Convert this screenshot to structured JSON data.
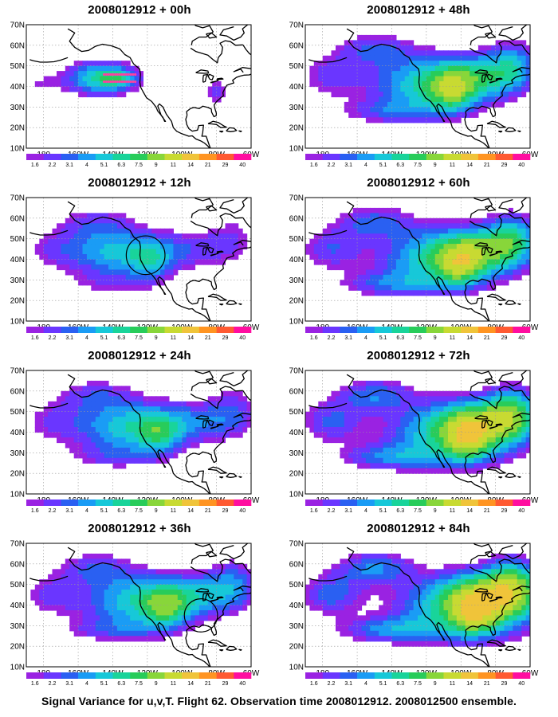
{
  "footer": {
    "caption": "Signal Variance for u,v,T. Flight 62. Observation time 2008012912. 2008012500 ensemble."
  },
  "axes": {
    "x_ticks": [
      "180",
      "160W",
      "140W",
      "120W",
      "100W",
      "80W",
      "60W"
    ],
    "y_ticks": [
      "70N",
      "60N",
      "50N",
      "40N",
      "30N",
      "20N",
      "10N"
    ]
  },
  "colorbar": {
    "labels": [
      "1.6",
      "2.2",
      "3.1",
      "4",
      "5.1",
      "6.3",
      "7.5",
      "9",
      "11",
      "14",
      "21",
      "29",
      "40"
    ],
    "colors": [
      "#ffffff",
      "#9a22e2",
      "#6a36ff",
      "#2a60f2",
      "#1a9cf5",
      "#17c8d8",
      "#19d49a",
      "#28cc5a",
      "#88d63a",
      "#c8da32",
      "#f0c43a",
      "#ff9422",
      "#ff5a32",
      "#ff0ea0"
    ]
  },
  "panels": [
    {
      "title": "2008012912 + 00h",
      "lead_hours": 0
    },
    {
      "title": "2008012912 + 48h",
      "lead_hours": 48
    },
    {
      "title": "2008012912 + 12h",
      "lead_hours": 12
    },
    {
      "title": "2008012912 + 60h",
      "lead_hours": 60
    },
    {
      "title": "2008012912 + 24h",
      "lead_hours": 24
    },
    {
      "title": "2008012912 + 72h",
      "lead_hours": 72
    },
    {
      "title": "2008012912 + 36h",
      "lead_hours": 36
    },
    {
      "title": "2008012912 + 84h",
      "lead_hours": 84
    }
  ],
  "observation_track": {
    "lon_from": -145,
    "lon_to": -127,
    "lat_from": 42,
    "lat_to": 46,
    "color": "#ff3fa0"
  },
  "target_circles": [
    {
      "panel": 2,
      "lon": -121,
      "lat": 42,
      "radius_deg": 7
    },
    {
      "panel": 6,
      "lon": -89,
      "lat": 35,
      "radius_deg": 6
    }
  ]
}
